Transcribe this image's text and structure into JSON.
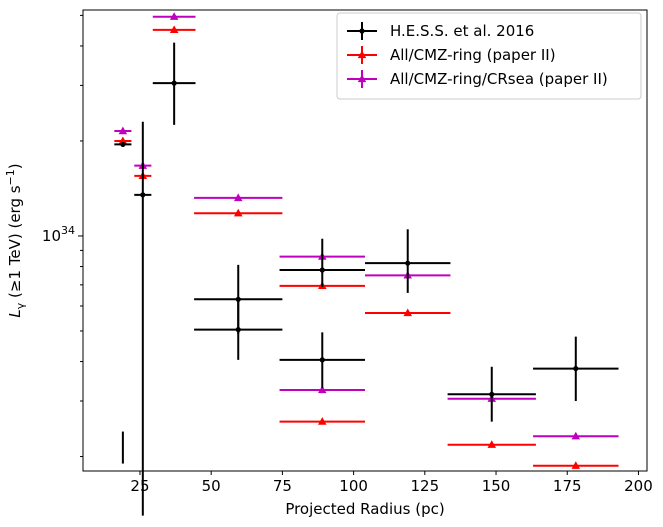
{
  "chart_data": {
    "type": "scatter",
    "title": "",
    "xlabel": "Projected Radius (pc)",
    "ylabel_parts": {
      "prefix": "L",
      "sub": "γ",
      "mid": " (≥1 TeV) (erg s",
      "sup": "−1",
      "suffix": ")"
    },
    "xlim": [
      5,
      203
    ],
    "ylim": [
      1.8e+33,
      5.2e+34
    ],
    "yscale": "log",
    "x_ticks": [
      25,
      50,
      75,
      100,
      125,
      150,
      175,
      200
    ],
    "x_tick_labels": [
      "25",
      "50",
      "75",
      "100",
      "125",
      "150",
      "175",
      "200"
    ],
    "y_major_tick": {
      "value": 1e+34,
      "base": "10",
      "exp": "34"
    },
    "y_minor_ticks": [
      2e+33,
      3e+33,
      4e+33,
      5e+33,
      6e+33,
      7e+33,
      8e+33,
      9e+33,
      2e+34,
      3e+34,
      4e+34,
      5e+34
    ],
    "legend_position": "top-right",
    "series": [
      {
        "name": "H.E.S.S. et al. 2016",
        "color": "#000000",
        "marker": "circle",
        "points": [
          {
            "x": 19,
            "xerr": [
              3,
              3
            ],
            "y": 1.95e+34,
            "yerr": [
              1.9e+33,
              2.4e+33
            ]
          },
          {
            "x": 26,
            "xerr": [
              3,
              3
            ],
            "y": 1.35e+34,
            "yerr": [
              1.3e+33,
              2.3e+34
            ]
          },
          {
            "x": 37,
            "xerr": [
              7.5,
              7.5
            ],
            "y": 3.05e+34,
            "yerr": [
              2.25e+34,
              4.1e+34
            ]
          },
          {
            "x": 59.5,
            "xerr": [
              15.5,
              15.5
            ],
            "y": 6.3e+33,
            "yerr": [
              4.9e+33,
              8.1e+33
            ]
          },
          {
            "x": 59.5,
            "xerr": [
              15.5,
              15.5
            ],
            "y": 5.05e+33,
            "yerr": [
              4.05e+33,
              6.3e+33
            ]
          },
          {
            "x": 89,
            "xerr": [
              15,
              15
            ],
            "y": 7.8e+33,
            "yerr": [
              6.9e+33,
              9.8e+33
            ]
          },
          {
            "x": 89,
            "xerr": [
              15,
              15
            ],
            "y": 4.05e+33,
            "yerr": [
              3.3e+33,
              4.95e+33
            ]
          },
          {
            "x": 119,
            "xerr": [
              15,
              15
            ],
            "y": 8.2e+33,
            "yerr": [
              6.6e+33,
              1.05e+34
            ]
          },
          {
            "x": 148.5,
            "xerr": [
              15.5,
              15.5
            ],
            "y": 3.15e+33,
            "yerr": [
              2.58e+33,
              3.85e+33
            ]
          },
          {
            "x": 178,
            "xerr": [
              15,
              15
            ],
            "y": 3.8e+33,
            "yerr": [
              3e+33,
              4.8e+33
            ]
          }
        ]
      },
      {
        "name": "All/CMZ-ring (paper II)",
        "color": "#ff0000",
        "marker": "triangle",
        "points": [
          {
            "x": 19,
            "xerr": [
              3,
              3
            ],
            "y": 2e+34
          },
          {
            "x": 26,
            "xerr": [
              3,
              3
            ],
            "y": 1.55e+34
          },
          {
            "x": 37,
            "xerr": [
              7.5,
              7.5
            ],
            "y": 4.5e+34
          },
          {
            "x": 59.5,
            "xerr": [
              15.5,
              15.5
            ],
            "y": 1.18e+34
          },
          {
            "x": 89,
            "xerr": [
              15,
              15
            ],
            "y": 6.95e+33
          },
          {
            "x": 119,
            "xerr": [
              15,
              15
            ],
            "y": 5.7e+33
          },
          {
            "x": 89,
            "xerr": [
              15,
              15
            ],
            "y": 2.58e+33
          },
          {
            "x": 148.5,
            "xerr": [
              15.5,
              15.5
            ],
            "y": 2.18e+33
          },
          {
            "x": 178,
            "xerr": [
              15,
              15
            ],
            "y": 1.87e+33
          }
        ]
      },
      {
        "name": "All/CMZ-ring/CRsea (paper II)",
        "color": "#bf00bf",
        "marker": "triangle",
        "points": [
          {
            "x": 19,
            "xerr": [
              3,
              3
            ],
            "y": 2.15e+34
          },
          {
            "x": 26,
            "xerr": [
              3,
              3
            ],
            "y": 1.67e+34
          },
          {
            "x": 37,
            "xerr": [
              7.5,
              7.5
            ],
            "y": 4.95e+34
          },
          {
            "x": 59.5,
            "xerr": [
              15.5,
              15.5
            ],
            "y": 1.32e+34
          },
          {
            "x": 89,
            "xerr": [
              15,
              15
            ],
            "y": 8.6e+33
          },
          {
            "x": 119,
            "xerr": [
              15,
              15
            ],
            "y": 7.5e+33
          },
          {
            "x": 89,
            "xerr": [
              15,
              15
            ],
            "y": 3.25e+33
          },
          {
            "x": 148.5,
            "xerr": [
              15.5,
              15.5
            ],
            "y": 3.05e+33
          },
          {
            "x": 178,
            "xerr": [
              15,
              15
            ],
            "y": 2.32e+33
          }
        ]
      }
    ]
  }
}
